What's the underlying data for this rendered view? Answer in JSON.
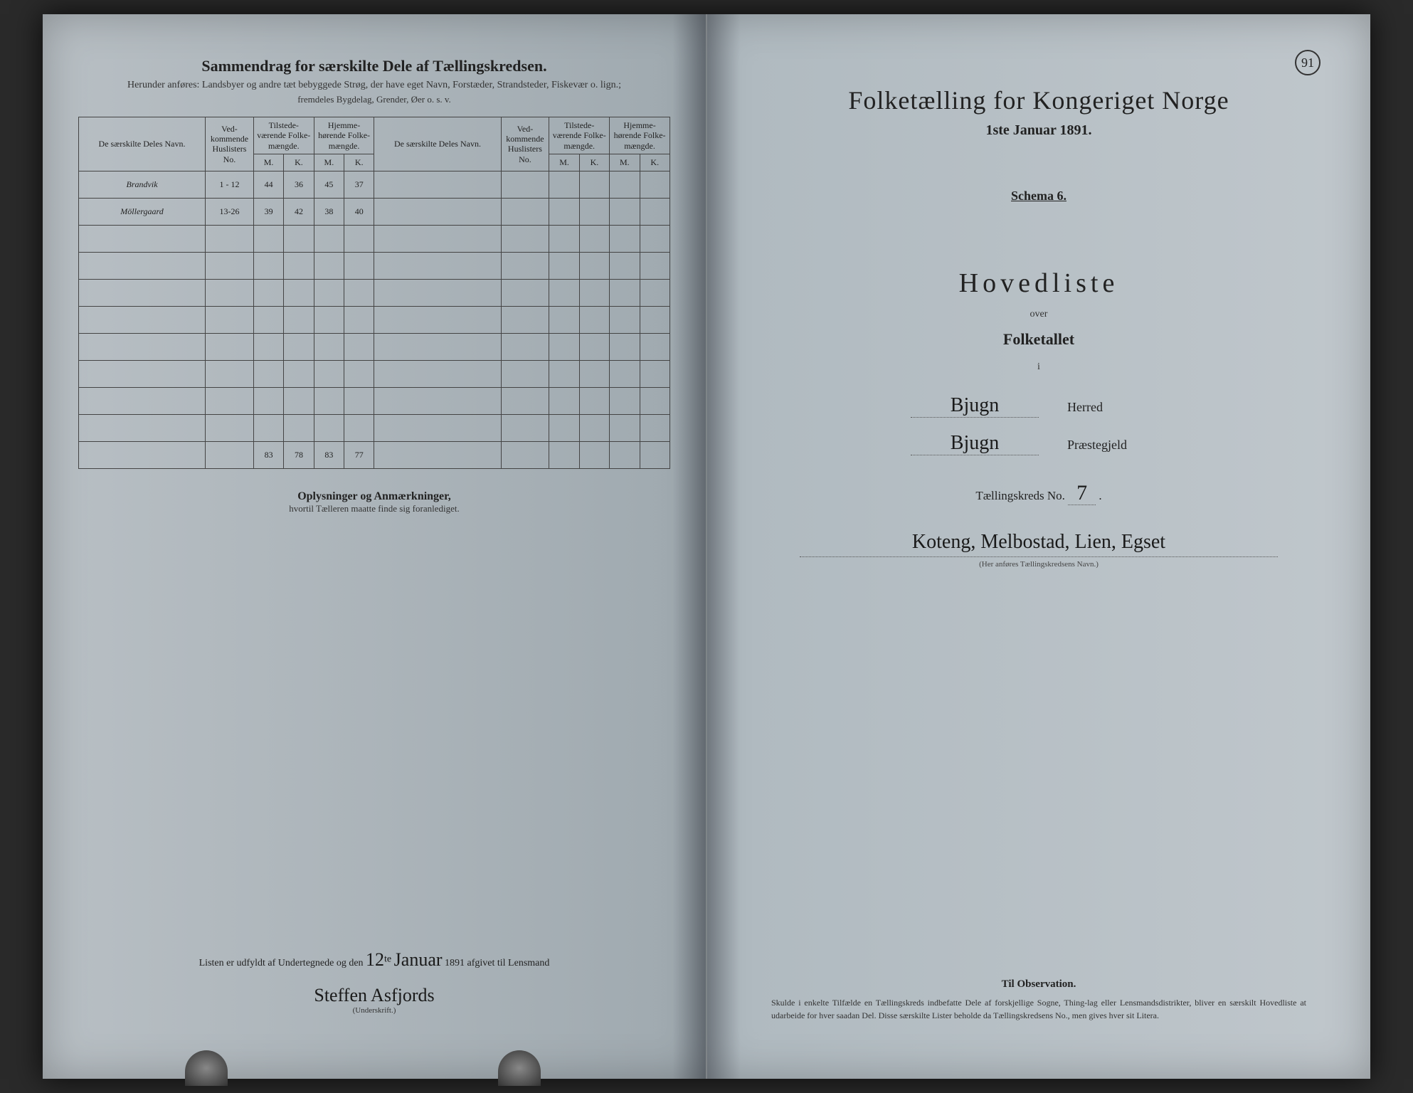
{
  "colors": {
    "page_bg": "#b0bac0",
    "ink": "#1a1a1a",
    "print": "#222222",
    "border": "#444444"
  },
  "left": {
    "title": "Sammendrag for særskilte Dele af Tællingskredsen.",
    "subtitle1": "Herunder anføres: Landsbyer og andre tæt bebyggede Strøg, der have eget Navn, Forstæder, Strandsteder, Fiskevær o. lign.;",
    "subtitle2": "fremdeles Bygdelag, Grender, Øer o. s. v.",
    "headers": {
      "name": "De særskilte Deles Navn.",
      "huslisters": "Ved-kommende Huslisters No.",
      "tilstede": "Tilstede-værende Folke-mængde.",
      "hjemme": "Hjemme-hørende Folke-mængde.",
      "m": "M.",
      "k": "K."
    },
    "rows": [
      {
        "name": "Brandvik",
        "no": "1 - 12",
        "tm": "44",
        "tk": "36",
        "hm": "45",
        "hk": "37"
      },
      {
        "name": "Möllergaard",
        "no": "13-26",
        "tm": "39",
        "tk": "42",
        "hm": "38",
        "hk": "40"
      }
    ],
    "totals": {
      "tm": "83",
      "tk": "78",
      "hm": "83",
      "hk": "77"
    },
    "oplys_title": "Oplysninger og Anmærkninger,",
    "oplys_sub": "hvortil Tælleren maatte finde sig foranlediget.",
    "sig_prefix": "Listen er udfyldt af Undertegnede og den",
    "sig_date_day": "12",
    "sig_date_month": "Januar",
    "sig_suffix": "1891 afgivet til Lensmand",
    "signature": "Steffen Asfjords",
    "undersk": "(Underskrift.)"
  },
  "right": {
    "page_no": "91",
    "title": "Folketælling for Kongeriget Norge",
    "date": "1ste Januar 1891.",
    "schema": "Schema 6.",
    "hoved": "Hovedliste",
    "over": "over",
    "folketallet": "Folketallet",
    "i": "i",
    "herred_hw": "Bjugn",
    "herred_label": "Herred",
    "praeste_hw": "Bjugn",
    "praeste_label": "Præstegjeld",
    "tkreds_label": "Tællingskreds No.",
    "tkreds_no": "7",
    "kreds_name": "Koteng, Melbostad, Lien, Egset",
    "kreds_sub": "(Her anføres Tællingskredsens Navn.)",
    "obs_title": "Til Observation.",
    "obs_text": "Skulde i enkelte Tilfælde en Tællingskreds indbefatte Dele af forskjellige Sogne, Thing-lag eller Lensmandsdistrikter, bliver en særskilt Hovedliste at udarbeide for hver saadan Del. Disse særskilte Lister beholde da Tællingskredsens No., men gives hver sit Litera."
  }
}
